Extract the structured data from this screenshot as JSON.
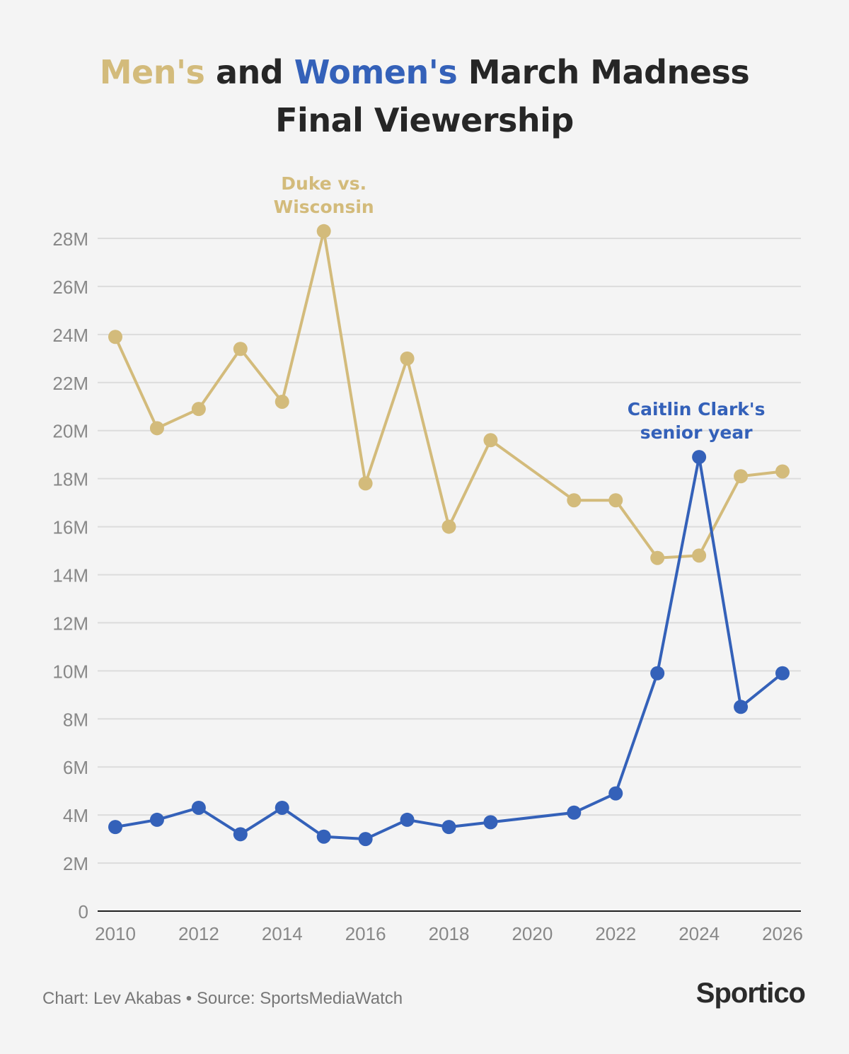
{
  "title": {
    "part1": "Men's",
    "part2": " and ",
    "part3": "Women's",
    "part4": " March Madness",
    "line2": "Final Viewership"
  },
  "colors": {
    "men": "#d3bb7b",
    "women": "#3461b9",
    "grid": "#dcdcdc",
    "axis": "#222222",
    "tick": "#888888"
  },
  "chart_data": {
    "type": "line",
    "title": "Men's and Women's March Madness Final Viewership",
    "x": [
      2010,
      2011,
      2012,
      2013,
      2014,
      2015,
      2016,
      2017,
      2018,
      2019,
      2021,
      2022,
      2023,
      2024,
      2025,
      2026
    ],
    "series": [
      {
        "name": "Men's",
        "color": "#d3bb7b",
        "values": [
          23.9,
          20.1,
          20.9,
          23.4,
          21.2,
          28.3,
          17.8,
          23.0,
          16.0,
          19.6,
          17.1,
          17.1,
          14.7,
          14.8,
          18.1,
          18.3
        ]
      },
      {
        "name": "Women's",
        "color": "#3461b9",
        "values": [
          3.5,
          3.8,
          4.3,
          3.2,
          4.3,
          3.1,
          3.0,
          3.8,
          3.5,
          3.7,
          4.1,
          4.9,
          9.9,
          18.9,
          8.5,
          9.9
        ]
      }
    ],
    "xlim": [
      2010,
      2026
    ],
    "ylim": [
      0,
      28
    ],
    "xticks": [
      "2010",
      "2012",
      "2014",
      "2016",
      "2018",
      "2020",
      "2022",
      "2024",
      "2026"
    ],
    "yticks": [
      "0",
      "2M",
      "4M",
      "6M",
      "8M",
      "10M",
      "12M",
      "14M",
      "16M",
      "18M",
      "20M",
      "22M",
      "24M",
      "26M",
      "28M"
    ],
    "grid": true,
    "annotations": [
      {
        "text_lines": [
          "Duke vs.",
          "Wisconsin"
        ],
        "series": "Men's",
        "x": 2015
      },
      {
        "text_lines": [
          "Caitlin Clark's",
          "senior year"
        ],
        "series": "Women's",
        "x": 2024
      }
    ]
  },
  "footer": {
    "credit": "Chart: Lev Akabas • Source: SportsMediaWatch",
    "logo": "Sportico"
  }
}
